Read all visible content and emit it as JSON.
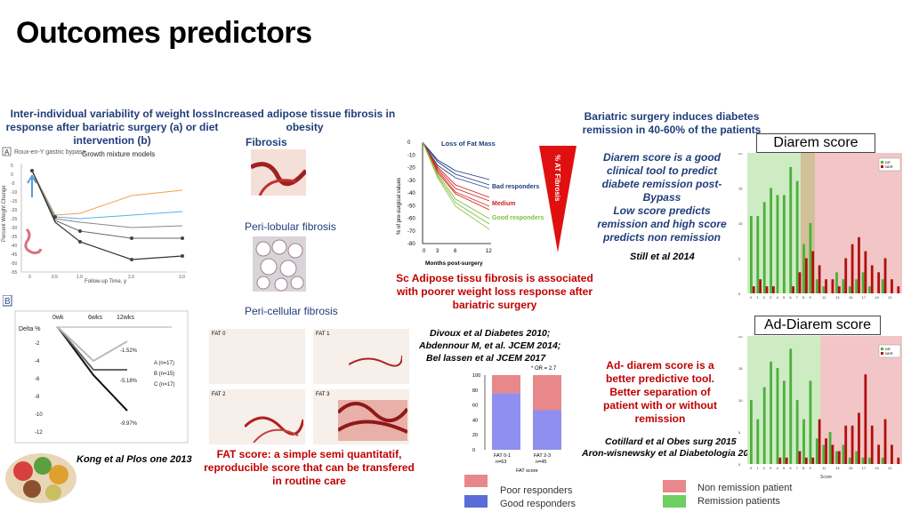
{
  "title": "Outcomes predictors",
  "panel_a": {
    "heading": "Inter-individual variability of weight loss response after bariatric surgery (a) or diet intervention (b)",
    "badge": "A",
    "procedure": "Roux-en-Y gastric bypass",
    "model_label": "Growth mixture models",
    "ylabel": "Percent Weight Change",
    "xlabel": "Follow-up Time, y",
    "y_ticks": [
      "5",
      "0",
      "-5",
      "-10",
      "-15",
      "-20",
      "-25",
      "-30",
      "-35",
      "-40",
      "-45",
      "-50",
      "-55"
    ],
    "x_ticks": [
      "0",
      "0.5",
      "1.0",
      "2.0",
      "3.0"
    ]
  },
  "panel_b": {
    "badge": "B",
    "x_ticks": [
      "0wk",
      "6wks",
      "12wks"
    ],
    "ylabel": "Delta %",
    "y_ticks": [
      "-2",
      "-4",
      "-6",
      "-8",
      "-10",
      "-12"
    ],
    "legend": [
      "A (n=17)",
      "B (n=15)",
      "C (n=17)"
    ],
    "annotations": [
      "-1.52%",
      "-5.18%",
      "-9.97%"
    ],
    "citation": "Kong et al Plos one 2013"
  },
  "fibrosis": {
    "heading": "Increased adipose tissue fibrosis in obesity",
    "label1": "Fibrosis",
    "label2": "Peri-lobular fibrosis",
    "label3": "Peri-cellular fibrosis",
    "tiles": [
      "FAT 0",
      "FAT 1",
      "FAT 2",
      "FAT 3"
    ],
    "caption": "FAT score: a simple semi quantitatif, reproducible score that can be transfered in routine care"
  },
  "fat_mass": {
    "title": "Loss of Fat Mass",
    "ylabel": "% of pre-surgical values",
    "xlabel": "Months post-surgery",
    "y_ticks": [
      "0",
      "-10",
      "-20",
      "-30",
      "-40",
      "-50",
      "-60",
      "-70",
      "-80"
    ],
    "x_ticks": [
      "0",
      "3",
      "6",
      "12"
    ],
    "groups": [
      "Bad responders",
      "Medium",
      "Good responders"
    ],
    "triangle_label": "% AT Fibrosis",
    "caption": "Sc Adipose tissu fibrosis is associated with poorer weight loss response after bariatric surgery",
    "refs": [
      "Divoux et al Diabetes 2010;",
      "Abdennour M, et al. JCEM 2014;",
      "Bel lassen et al JCEM 2017"
    ]
  },
  "fat_bar": {
    "chart_data": {
      "type": "bar",
      "categories": [
        "FAT 0-1",
        "FAT 2-3"
      ],
      "n_labels": [
        "n=63",
        "n=45"
      ],
      "series": [
        {
          "name": "Good responders",
          "values": [
            76,
            53
          ]
        },
        {
          "name": "Poor responders",
          "values": [
            24,
            47
          ]
        }
      ],
      "y_ticks": [
        "0",
        "20",
        "40",
        "60",
        "80",
        "100"
      ],
      "ylim": [
        0,
        100
      ],
      "xlabel": "FAT score",
      "annotation": "* OR = 2.7"
    },
    "legend_poor": "Poor responders",
    "legend_good": "Good responders",
    "colors": {
      "poor": "#e8888a",
      "good": "#8f8ff0"
    }
  },
  "diarem": {
    "heading": "Bariatric surgery induces diabetes remission in 40-60% of the patients",
    "box_label": "Diarem score",
    "text": "Diarem score is a good clinical tool to predict diabete remission post-Bypass Low score predicts remission and high score predicts non remission",
    "text_lines": [
      "Diarem score is a good",
      "clinical tool to predict",
      "diabete remission post-",
      "Bypass",
      "Low score predicts",
      "remission and high score",
      "predicts non remission"
    ],
    "citation": "Still et al 2014",
    "legend": [
      "DR",
      "NDR"
    ],
    "y_ticks": [
      "0",
      "5",
      "10",
      "15",
      "20"
    ],
    "x_ticks": [
      "0",
      "1",
      "2",
      "3",
      "4",
      "5",
      "6",
      "7",
      "8",
      "9",
      "11",
      "13",
      "15",
      "17",
      "19",
      "21"
    ],
    "chart_data": {
      "type": "bar",
      "scores": [
        0,
        1,
        2,
        3,
        4,
        5,
        6,
        7,
        8,
        9,
        10,
        11,
        12,
        13,
        14,
        15,
        16,
        17,
        18,
        19,
        20,
        21,
        22
      ],
      "series": [
        {
          "name": "DR",
          "values": [
            11,
            11,
            13,
            15,
            14,
            14,
            18,
            16,
            7,
            10,
            2,
            1,
            0,
            3,
            2,
            1,
            2,
            3,
            1,
            0,
            2,
            0,
            0
          ]
        },
        {
          "name": "NDR",
          "values": [
            1,
            2,
            1,
            1,
            0,
            0,
            1,
            3,
            5,
            6,
            4,
            2,
            2,
            1,
            5,
            7,
            8,
            6,
            4,
            3,
            5,
            2,
            1
          ]
        }
      ],
      "ylim": [
        0,
        20
      ]
    }
  },
  "ad_diarem": {
    "box_label": "Ad-Diarem score",
    "text_lines": [
      "Ad- diarem score is a",
      "better predictive tool.",
      "Better separation of",
      "patient with or without",
      "remission"
    ],
    "refs": [
      "Cotillard et al Obes surg 2015",
      "Aron-wisnewsky et al Diabetologia 2017"
    ],
    "legend": [
      "DR",
      "NDR"
    ],
    "y_ticks": [
      "0",
      "5",
      "10",
      "15",
      "20"
    ],
    "x_ticks": [
      "0",
      "1",
      "2",
      "3",
      "4",
      "5",
      "6",
      "7",
      "8",
      "9",
      "11",
      "13",
      "15",
      "17",
      "19",
      "21"
    ],
    "xlabel": "Score",
    "chart_data": {
      "type": "bar",
      "scores": [
        0,
        1,
        2,
        3,
        4,
        5,
        6,
        7,
        8,
        9,
        10,
        11,
        12,
        13,
        14,
        15,
        16,
        17,
        18,
        19,
        20,
        21,
        22
      ],
      "series": [
        {
          "name": "DR",
          "values": [
            10,
            7,
            12,
            16,
            15,
            13,
            18,
            10,
            7,
            13,
            4,
            3,
            5,
            2,
            3,
            1,
            2,
            1,
            1,
            0,
            1,
            0,
            0
          ]
        },
        {
          "name": "NDR",
          "values": [
            0,
            0,
            0,
            0,
            1,
            1,
            0,
            2,
            1,
            1,
            7,
            4,
            3,
            2,
            6,
            6,
            8,
            14,
            6,
            3,
            7,
            3,
            1
          ]
        }
      ],
      "ylim": [
        0,
        20
      ]
    }
  },
  "bottom_legend": {
    "non_remission": "Non remission patient",
    "remission": "Remission patients",
    "colors": {
      "non_remission": "#e8888a",
      "remission": "#6ccf60"
    }
  }
}
